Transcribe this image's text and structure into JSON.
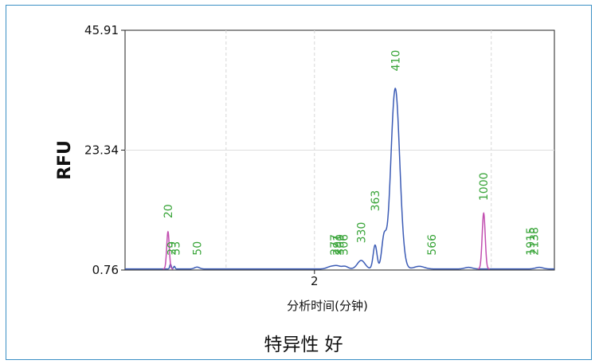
{
  "chart_data": {
    "type": "line",
    "title": "",
    "caption": "特异性 好",
    "xlabel": "分析时间(分钟)",
    "ylabel": "RFU",
    "xlim": [
      0.5,
      3.9
    ],
    "ylim": [
      0.76,
      45.91
    ],
    "x_ticks": [
      {
        "value": 2,
        "label": "2"
      }
    ],
    "y_ticks": [
      {
        "value": 45.91,
        "label": "45.91"
      },
      {
        "value": 23.34,
        "label": "23.34"
      },
      {
        "value": 0.76,
        "label": "0.76"
      }
    ],
    "grid_x": [
      1.3,
      2.0,
      3.4
    ],
    "grid_y": [
      23.34
    ],
    "series": [
      {
        "color": "#3b5bb5",
        "peaks": [
          {
            "x": 0.86,
            "height": 0.9,
            "width": 0.006
          },
          {
            "x": 0.89,
            "height": 0.5,
            "width": 0.006
          },
          {
            "x": 1.07,
            "height": 0.35,
            "width": 0.02
          },
          {
            "x": 2.13,
            "height": 0.45,
            "width": 0.03
          },
          {
            "x": 2.18,
            "height": 0.5,
            "width": 0.025
          },
          {
            "x": 2.24,
            "height": 0.5,
            "width": 0.025
          },
          {
            "x": 2.37,
            "height": 1.6,
            "width": 0.03
          },
          {
            "x": 2.48,
            "height": 4.5,
            "width": 0.015
          },
          {
            "x": 2.55,
            "height": 5.5,
            "width": 0.018
          },
          {
            "x": 2.64,
            "height": 34.0,
            "width": 0.035
          },
          {
            "x": 2.83,
            "height": 0.5,
            "width": 0.04
          },
          {
            "x": 3.22,
            "height": 0.3,
            "width": 0.03
          },
          {
            "x": 3.78,
            "height": 0.3,
            "width": 0.03
          }
        ]
      },
      {
        "color": "#c24fb0",
        "peaks": [
          {
            "x": 0.84,
            "height": 7.0,
            "width": 0.01
          },
          {
            "x": 3.34,
            "height": 10.5,
            "width": 0.012
          }
        ]
      }
    ],
    "peak_labels": [
      {
        "x": 0.84,
        "y": 10.5,
        "text": "20"
      },
      {
        "x": 0.87,
        "y": 3.5,
        "text": "29"
      },
      {
        "x": 0.9,
        "y": 3.5,
        "text": "33"
      },
      {
        "x": 1.07,
        "y": 3.5,
        "text": "50"
      },
      {
        "x": 2.16,
        "y": 3.5,
        "text": "277"
      },
      {
        "x": 2.18,
        "y": 3.5,
        "text": "291"
      },
      {
        "x": 2.2,
        "y": 3.5,
        "text": "300"
      },
      {
        "x": 2.23,
        "y": 3.5,
        "text": "306"
      },
      {
        "x": 2.37,
        "y": 5.8,
        "text": "330"
      },
      {
        "x": 2.48,
        "y": 11.8,
        "text": "363"
      },
      {
        "x": 2.64,
        "y": 38.2,
        "text": "410"
      },
      {
        "x": 2.93,
        "y": 3.5,
        "text": "566"
      },
      {
        "x": 3.34,
        "y": 13.8,
        "text": "1000"
      },
      {
        "x": 3.71,
        "y": 3.5,
        "text": "1915"
      },
      {
        "x": 3.74,
        "y": 3.5,
        "text": "2138"
      }
    ]
  }
}
